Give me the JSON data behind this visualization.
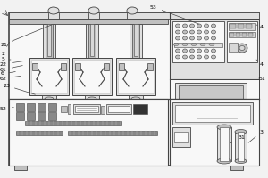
{
  "bg_color": "#f2f2f2",
  "line_color": "#444444",
  "fill_light": "#e0e0e0",
  "fill_medium": "#c0c0c0",
  "fill_dark": "#888888",
  "fill_white": "#f8f8f8",
  "fill_panel": "#d8d8d8",
  "fill_screen": "#c8c8c8",
  "fill_black": "#333333"
}
